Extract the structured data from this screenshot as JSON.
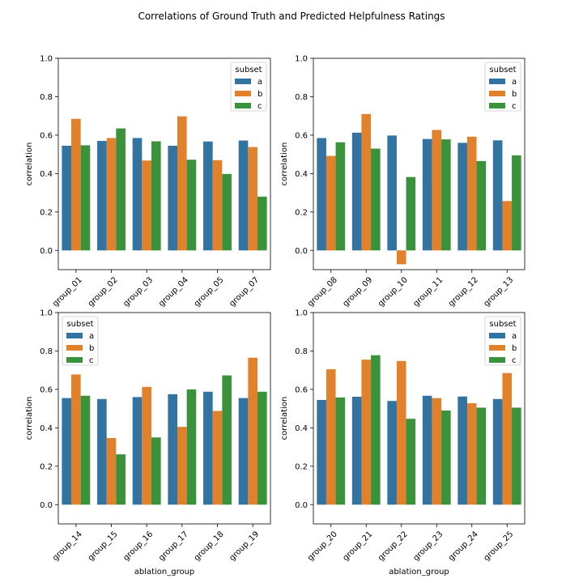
{
  "figure": {
    "title": "Correlations of Ground Truth and Predicted Helpfulness Ratings"
  },
  "colors": {
    "a": "#3274a1",
    "b": "#e1812c",
    "c": "#3a923a"
  },
  "chart_data": [
    {
      "type": "bar",
      "categories": [
        "group_01",
        "group_02",
        "group_03",
        "group_04",
        "group_05",
        "group_07"
      ],
      "series": [
        {
          "name": "a",
          "values": [
            0.545,
            0.57,
            0.585,
            0.545,
            0.567,
            0.572
          ]
        },
        {
          "name": "b",
          "values": [
            0.685,
            0.585,
            0.468,
            0.698,
            0.47,
            0.538
          ]
        },
        {
          "name": "c",
          "values": [
            0.547,
            0.635,
            0.568,
            0.472,
            0.398,
            0.28
          ]
        }
      ],
      "ylim": [
        -0.1,
        1.0
      ],
      "yticks": [
        "0.0",
        "0.2",
        "0.4",
        "0.6",
        "0.8",
        "1.0"
      ],
      "xlabel": "",
      "ylabel": "correlation",
      "legend": {
        "title": "subset",
        "position": "top-right"
      }
    },
    {
      "type": "bar",
      "categories": [
        "group_08",
        "group_09",
        "group_10",
        "group_11",
        "group_12",
        "group_13"
      ],
      "series": [
        {
          "name": "a",
          "values": [
            0.585,
            0.613,
            0.598,
            0.58,
            0.56,
            0.573
          ]
        },
        {
          "name": "b",
          "values": [
            0.492,
            0.71,
            -0.072,
            0.627,
            0.592,
            0.257
          ]
        },
        {
          "name": "c",
          "values": [
            0.563,
            0.53,
            0.382,
            0.578,
            0.465,
            0.495
          ]
        }
      ],
      "ylim": [
        -0.1,
        1.0
      ],
      "yticks": [
        "0.0",
        "0.2",
        "0.4",
        "0.6",
        "0.8",
        "1.0"
      ],
      "xlabel": "",
      "ylabel": "correlation",
      "legend": {
        "title": "subset",
        "position": "top-right"
      }
    },
    {
      "type": "bar",
      "categories": [
        "group_14",
        "group_15",
        "group_16",
        "group_17",
        "group_18",
        "group_19"
      ],
      "series": [
        {
          "name": "a",
          "values": [
            0.555,
            0.55,
            0.56,
            0.575,
            0.588,
            0.555
          ]
        },
        {
          "name": "b",
          "values": [
            0.678,
            0.347,
            0.613,
            0.405,
            0.488,
            0.765
          ]
        },
        {
          "name": "c",
          "values": [
            0.567,
            0.262,
            0.35,
            0.6,
            0.673,
            0.588
          ]
        }
      ],
      "ylim": [
        -0.1,
        1.0
      ],
      "yticks": [
        "0.0",
        "0.2",
        "0.4",
        "0.6",
        "0.8",
        "1.0"
      ],
      "xlabel": "ablation_group",
      "ylabel": "correlation",
      "legend": {
        "title": "subset",
        "position": "top-left"
      }
    },
    {
      "type": "bar",
      "categories": [
        "group_20",
        "group_21",
        "group_22",
        "group_23",
        "group_24",
        "group_25"
      ],
      "series": [
        {
          "name": "a",
          "values": [
            0.545,
            0.562,
            0.54,
            0.567,
            0.563,
            0.55
          ]
        },
        {
          "name": "b",
          "values": [
            0.705,
            0.755,
            0.748,
            0.555,
            0.528,
            0.685
          ]
        },
        {
          "name": "c",
          "values": [
            0.558,
            0.778,
            0.447,
            0.49,
            0.505,
            0.505
          ]
        }
      ],
      "ylim": [
        -0.1,
        1.0
      ],
      "yticks": [
        "0.0",
        "0.2",
        "0.4",
        "0.6",
        "0.8",
        "1.0"
      ],
      "xlabel": "ablation_group",
      "ylabel": "correlation",
      "legend": {
        "title": "subset",
        "position": "top-right"
      }
    }
  ]
}
